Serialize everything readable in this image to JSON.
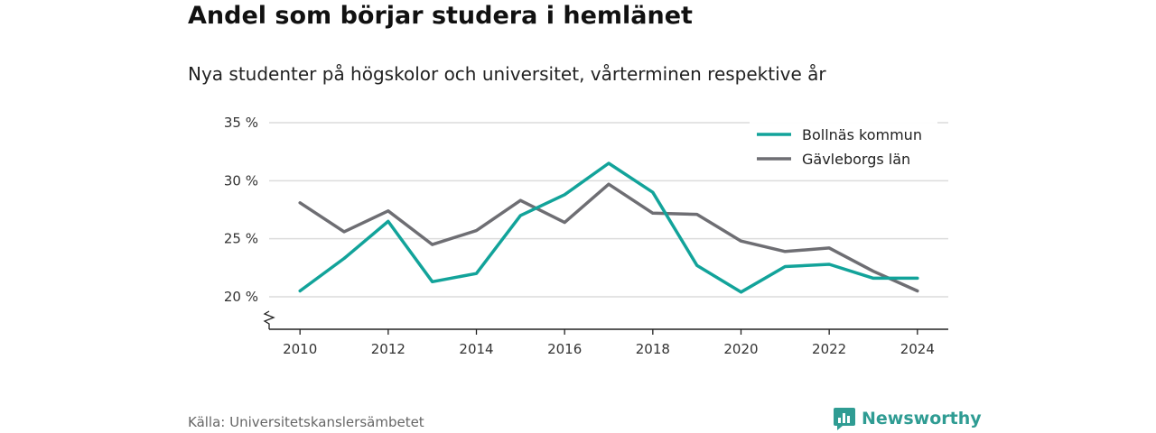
{
  "title": "Andel som börjar studera i hemlänet",
  "subtitle": "Nya studenter på högskolor och universitet, vårterminen respektive år",
  "source": "Källa: Universitetskanslersämbetet",
  "brand": {
    "name": "Newsworthy",
    "icon": "bar-chart-bubble-icon",
    "color": "#2f9c93"
  },
  "chart_data": {
    "type": "line",
    "x": [
      2010,
      2011,
      2012,
      2013,
      2014,
      2015,
      2016,
      2017,
      2018,
      2019,
      2020,
      2021,
      2022,
      2023,
      2024
    ],
    "x_ticks": [
      "2010",
      "2012",
      "2014",
      "2016",
      "2018",
      "2020",
      "2022",
      "2024"
    ],
    "y_ticks": [
      20,
      25,
      30,
      35
    ],
    "y_tick_labels": [
      "20 %",
      "25 %",
      "30 %",
      "35 %"
    ],
    "ylim": [
      17.2,
      35
    ],
    "y_axis_break": true,
    "grid": true,
    "legend_position": "top-right",
    "series": [
      {
        "name": "Bollnäs kommun",
        "color": "#12a39a",
        "values": [
          20.5,
          23.3,
          26.5,
          21.3,
          22.0,
          27.0,
          28.8,
          31.5,
          29.0,
          22.7,
          20.4,
          22.6,
          22.8,
          21.6,
          21.6
        ]
      },
      {
        "name": "Gävleborgs län",
        "color": "#6e6e73",
        "values": [
          28.1,
          25.6,
          27.4,
          24.5,
          25.7,
          28.3,
          26.4,
          29.7,
          27.2,
          27.1,
          24.8,
          23.9,
          24.2,
          22.2,
          20.5
        ]
      }
    ]
  }
}
